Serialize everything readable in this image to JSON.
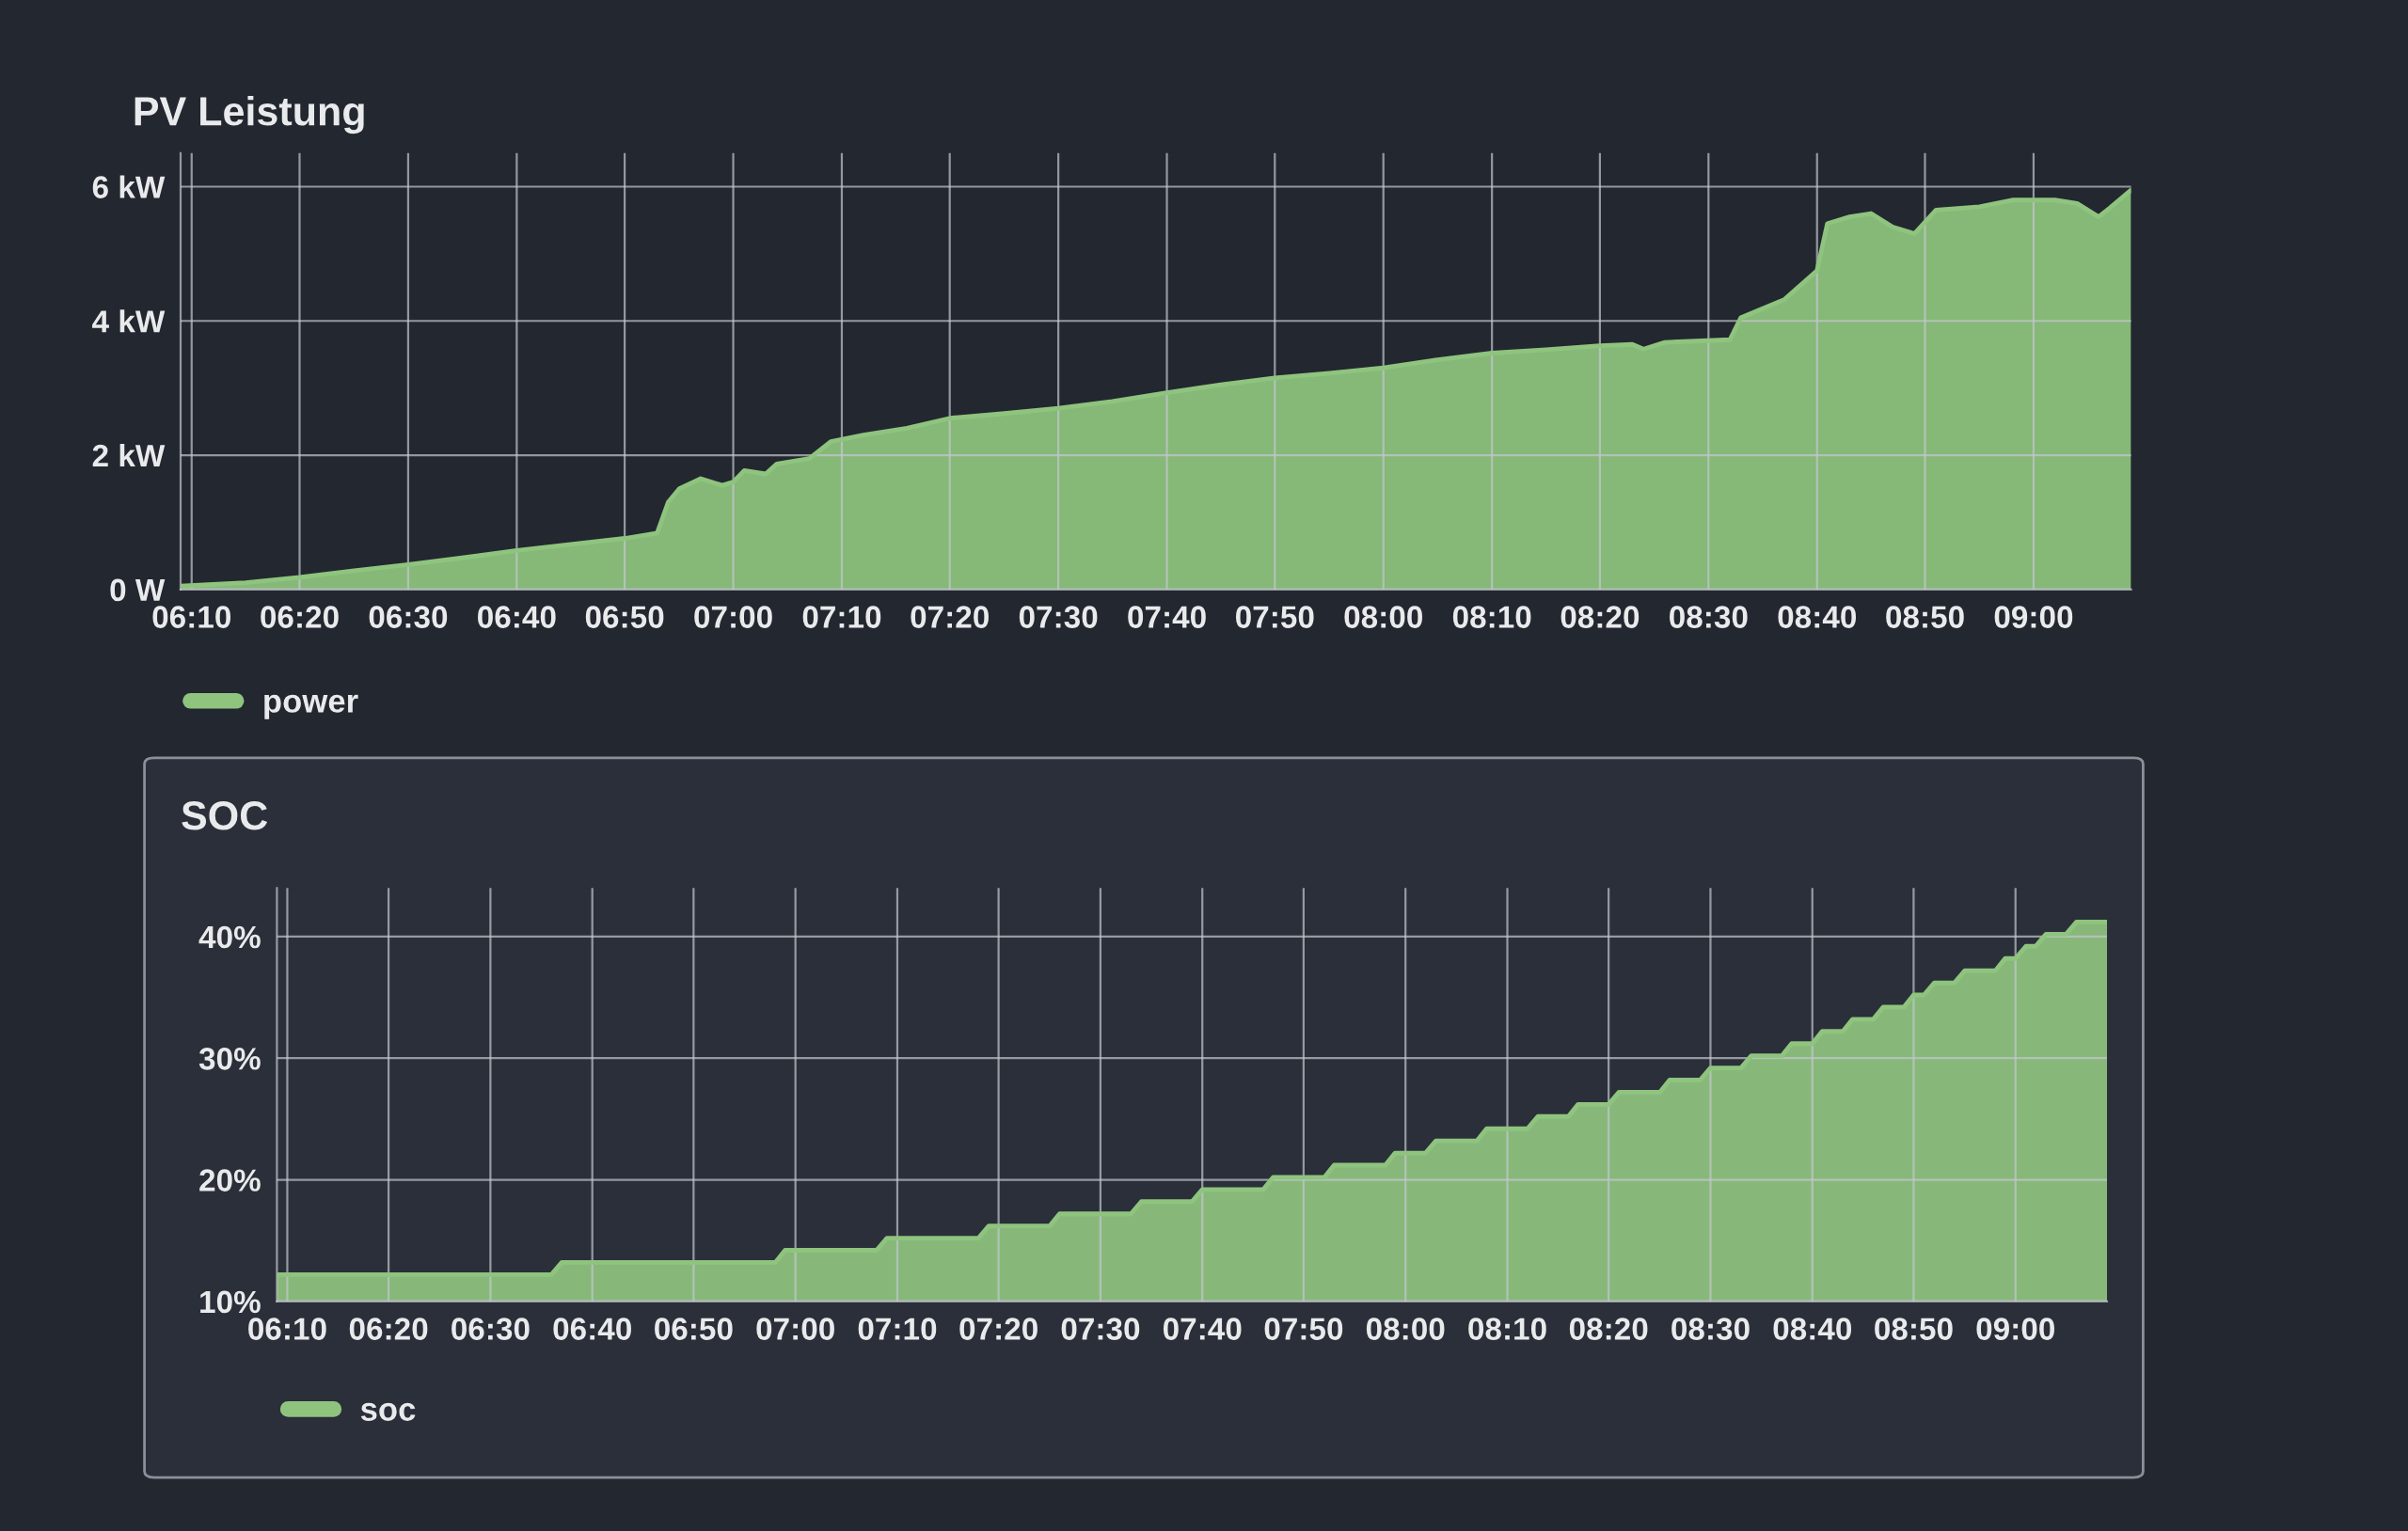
{
  "chart_data": [
    {
      "type": "area",
      "title": "PV Leistung",
      "x": [
        6.15,
        6.25,
        6.333,
        6.417,
        6.5,
        6.583,
        6.667,
        6.75,
        6.833,
        6.883,
        6.9,
        6.917,
        6.95,
        6.983,
        7.0,
        7.017,
        7.05,
        7.067,
        7.117,
        7.15,
        7.2,
        7.267,
        7.333,
        7.417,
        7.5,
        7.583,
        7.667,
        7.75,
        7.833,
        7.917,
        8.0,
        8.083,
        8.167,
        8.25,
        8.333,
        8.383,
        8.4,
        8.433,
        8.533,
        8.55,
        8.617,
        8.667,
        8.683,
        8.717,
        8.75,
        8.783,
        8.817,
        8.85,
        8.917,
        8.967,
        9.033,
        9.067,
        9.1,
        9.117,
        9.15
      ],
      "series": [
        {
          "name": "power",
          "color": "#8fc47f",
          "values": [
            0.05,
            0.1,
            0.18,
            0.28,
            0.37,
            0.47,
            0.58,
            0.67,
            0.76,
            0.84,
            1.3,
            1.5,
            1.65,
            1.55,
            1.6,
            1.77,
            1.72,
            1.87,
            1.95,
            2.2,
            2.3,
            2.4,
            2.55,
            2.62,
            2.7,
            2.8,
            2.93,
            3.05,
            3.15,
            3.22,
            3.3,
            3.42,
            3.52,
            3.57,
            3.63,
            3.65,
            3.58,
            3.68,
            3.72,
            4.05,
            4.32,
            4.75,
            5.45,
            5.55,
            5.6,
            5.4,
            5.3,
            5.65,
            5.7,
            5.8,
            5.8,
            5.75,
            5.55,
            5.68,
            5.95
          ]
        }
      ],
      "xlim": [
        6.15,
        9.15
      ],
      "xticks": [
        {
          "value": 6.167,
          "label": "06:10"
        },
        {
          "value": 6.333,
          "label": "06:20"
        },
        {
          "value": 6.5,
          "label": "06:30"
        },
        {
          "value": 6.667,
          "label": "06:40"
        },
        {
          "value": 6.833,
          "label": "06:50"
        },
        {
          "value": 7.0,
          "label": "07:00"
        },
        {
          "value": 7.167,
          "label": "07:10"
        },
        {
          "value": 7.333,
          "label": "07:20"
        },
        {
          "value": 7.5,
          "label": "07:30"
        },
        {
          "value": 7.667,
          "label": "07:40"
        },
        {
          "value": 7.833,
          "label": "07:50"
        },
        {
          "value": 8.0,
          "label": "08:00"
        },
        {
          "value": 8.167,
          "label": "08:10"
        },
        {
          "value": 8.333,
          "label": "08:20"
        },
        {
          "value": 8.5,
          "label": "08:30"
        },
        {
          "value": 8.667,
          "label": "08:40"
        },
        {
          "value": 8.833,
          "label": "08:50"
        },
        {
          "value": 9.0,
          "label": "09:00"
        }
      ],
      "ylim": [
        0,
        6.5
      ],
      "yticks": [
        {
          "value": 0,
          "label": "0 W"
        },
        {
          "value": 2,
          "label": "2 kW"
        },
        {
          "value": 4,
          "label": "4 kW"
        },
        {
          "value": 6,
          "label": "6 kW"
        }
      ],
      "grid": true,
      "legend": "bottom left"
    },
    {
      "type": "area",
      "title": "SOC",
      "x": [
        6.15,
        6.6,
        6.617,
        6.967,
        6.983,
        7.133,
        7.15,
        7.3,
        7.317,
        7.417,
        7.433,
        7.55,
        7.567,
        7.65,
        7.667,
        7.767,
        7.783,
        7.867,
        7.883,
        7.967,
        7.983,
        8.033,
        8.05,
        8.117,
        8.133,
        8.2,
        8.217,
        8.267,
        8.283,
        8.333,
        8.35,
        8.417,
        8.433,
        8.483,
        8.5,
        8.55,
        8.567,
        8.617,
        8.633,
        8.667,
        8.683,
        8.717,
        8.733,
        8.767,
        8.783,
        8.817,
        8.833,
        8.85,
        8.867,
        8.9,
        8.917,
        8.967,
        8.983,
        9.0,
        9.017,
        9.033,
        9.05,
        9.083,
        9.1,
        9.15
      ],
      "series": [
        {
          "name": "soc",
          "color": "#8fc47f",
          "values": [
            12.2,
            12.2,
            13.2,
            13.2,
            14.2,
            14.2,
            15.2,
            15.2,
            16.2,
            16.2,
            17.2,
            17.2,
            18.2,
            18.2,
            19.2,
            19.2,
            20.2,
            20.2,
            21.2,
            21.2,
            22.2,
            22.2,
            23.2,
            23.2,
            24.2,
            24.2,
            25.2,
            25.2,
            26.2,
            26.2,
            27.2,
            27.2,
            28.2,
            28.2,
            29.2,
            29.2,
            30.2,
            30.2,
            31.2,
            31.2,
            32.2,
            32.2,
            33.2,
            33.2,
            34.2,
            34.2,
            35.2,
            35.2,
            36.2,
            36.2,
            37.2,
            37.2,
            38.2,
            38.2,
            39.2,
            39.2,
            40.2,
            40.2,
            41.2,
            41.2
          ]
        }
      ],
      "xlim": [
        6.15,
        9.15
      ],
      "xticks": [
        {
          "value": 6.167,
          "label": "06:10"
        },
        {
          "value": 6.333,
          "label": "06:20"
        },
        {
          "value": 6.5,
          "label": "06:30"
        },
        {
          "value": 6.667,
          "label": "06:40"
        },
        {
          "value": 6.833,
          "label": "06:50"
        },
        {
          "value": 7.0,
          "label": "07:00"
        },
        {
          "value": 7.167,
          "label": "07:10"
        },
        {
          "value": 7.333,
          "label": "07:20"
        },
        {
          "value": 7.5,
          "label": "07:30"
        },
        {
          "value": 7.667,
          "label": "07:40"
        },
        {
          "value": 7.833,
          "label": "07:50"
        },
        {
          "value": 8.0,
          "label": "08:00"
        },
        {
          "value": 8.167,
          "label": "08:10"
        },
        {
          "value": 8.333,
          "label": "08:20"
        },
        {
          "value": 8.5,
          "label": "08:30"
        },
        {
          "value": 8.667,
          "label": "08:40"
        },
        {
          "value": 8.833,
          "label": "08:50"
        },
        {
          "value": 9.0,
          "label": "09:00"
        }
      ],
      "ylim": [
        10,
        44
      ],
      "yticks": [
        {
          "value": 10,
          "label": "10%"
        },
        {
          "value": 20,
          "label": "20%"
        },
        {
          "value": 30,
          "label": "30%"
        },
        {
          "value": 40,
          "label": "40%"
        }
      ],
      "grid": true,
      "legend": "bottom left"
    }
  ]
}
